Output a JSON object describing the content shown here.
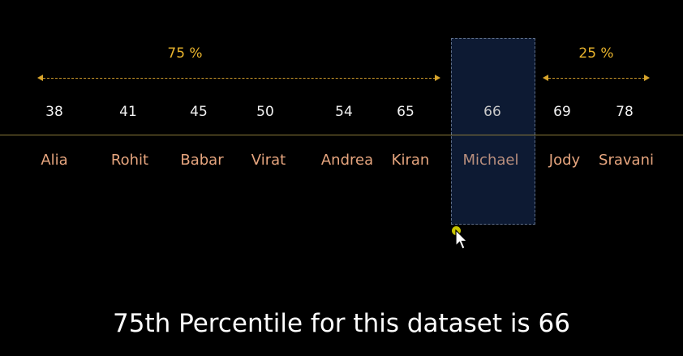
{
  "percent_labels": {
    "left": "75 %",
    "right": "25 %"
  },
  "entries": [
    {
      "name": "Alia",
      "score": "38"
    },
    {
      "name": "Rohit",
      "score": "41"
    },
    {
      "name": "Babar",
      "score": "45"
    },
    {
      "name": "Virat",
      "score": "50"
    },
    {
      "name": "Andrea",
      "score": "54"
    },
    {
      "name": "Kiran",
      "score": "65"
    },
    {
      "name": "Michael",
      "score": "66"
    },
    {
      "name": "Jody",
      "score": "69"
    },
    {
      "name": "Sravani",
      "score": "78"
    }
  ],
  "highlighted_index": 6,
  "caption": "75th Percentile for this dataset is 66",
  "colors": {
    "accent": "#e8b32c",
    "name_text": "#e6a57e",
    "highlight_box": "#0d1a33"
  },
  "icons": {
    "cursor": "mouse-pointer-icon"
  }
}
